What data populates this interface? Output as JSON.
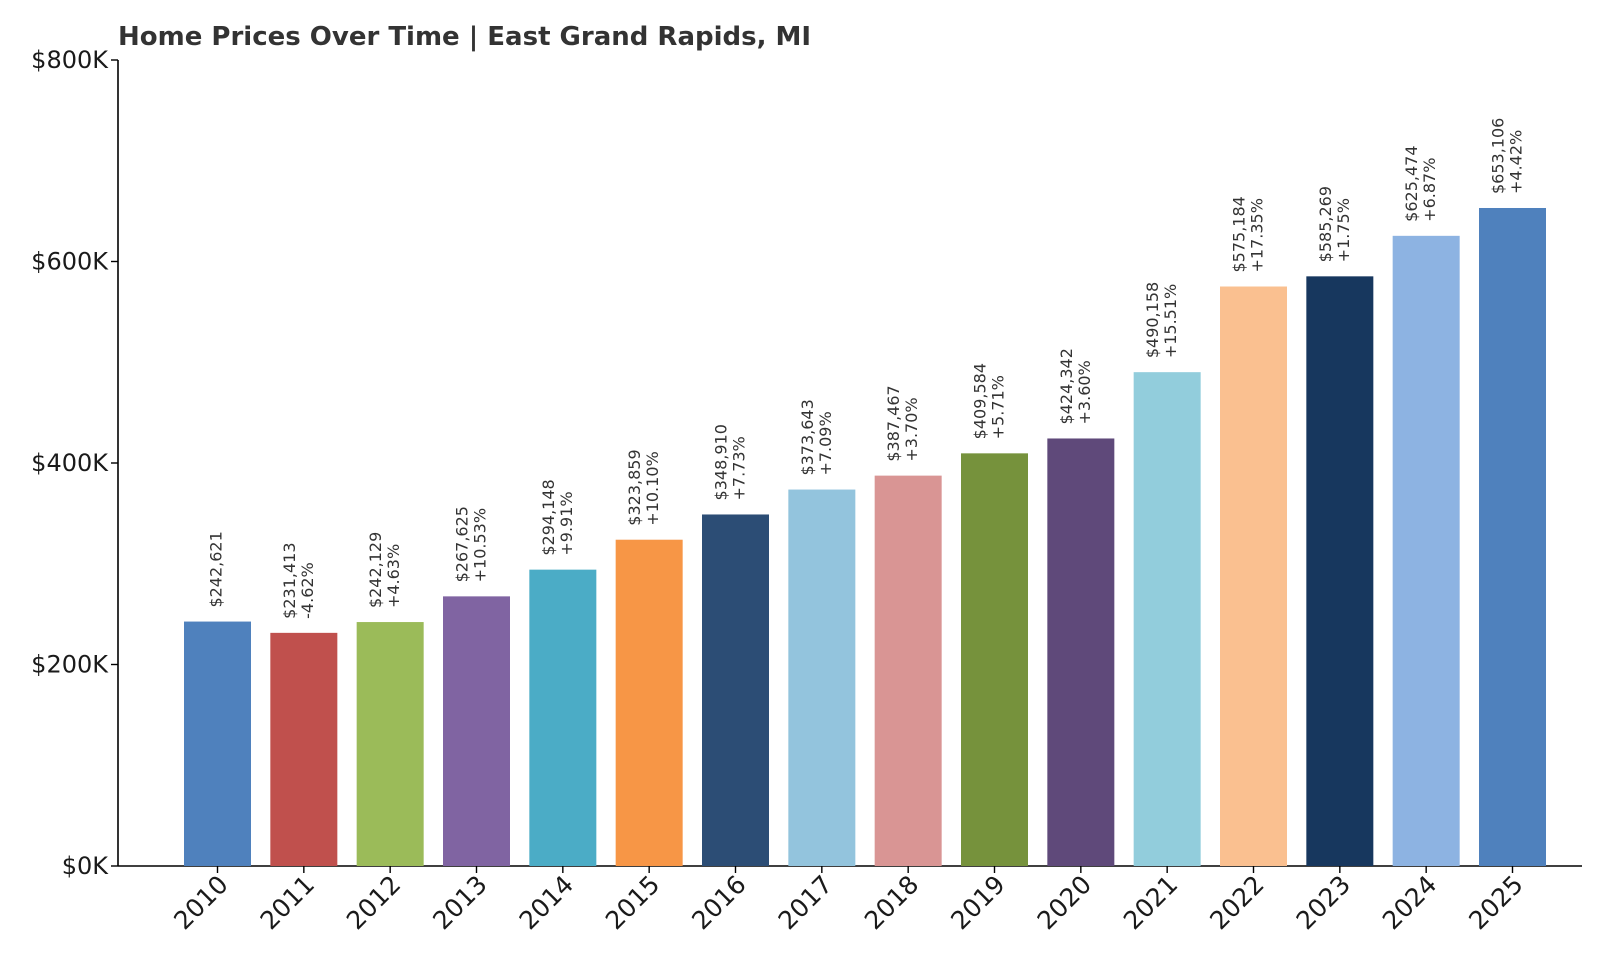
{
  "chart_data": {
    "type": "bar",
    "title": "Home Prices Over Time | East Grand Rapids, MI",
    "xlabel": "",
    "ylabel": "",
    "ylim": [
      0,
      800000
    ],
    "yticks": [
      0,
      200000,
      400000,
      600000,
      800000
    ],
    "ytick_labels": [
      "$0K",
      "$200K",
      "$400K",
      "$600K",
      "$800K"
    ],
    "grid": false,
    "legend": "none",
    "categories": [
      "2010",
      "2011",
      "2012",
      "2013",
      "2014",
      "2015",
      "2016",
      "2017",
      "2018",
      "2019",
      "2020",
      "2021",
      "2022",
      "2023",
      "2024",
      "2025"
    ],
    "values": [
      242621,
      231413,
      242129,
      267625,
      294148,
      323859,
      348910,
      373643,
      387467,
      409584,
      424342,
      490158,
      575184,
      585269,
      625474,
      653106
    ],
    "value_labels": [
      "$242,621",
      "$231,413",
      "$242,129",
      "$267,625",
      "$294,148",
      "$323,859",
      "$348,910",
      "$373,643",
      "$387,467",
      "$409,584",
      "$424,342",
      "$490,158",
      "$575,184",
      "$585,269",
      "$625,474",
      "$653,106"
    ],
    "change_labels": [
      "",
      "-4.62%",
      "+4.63%",
      "+10.53%",
      "+9.91%",
      "+10.10%",
      "+7.73%",
      "+7.09%",
      "+3.70%",
      "+5.71%",
      "+3.60%",
      "+15.51%",
      "+17.35%",
      "+1.75%",
      "+6.87%",
      "+4.42%"
    ],
    "colors": [
      "#4f81bd",
      "#c0504d",
      "#9bbb59",
      "#8064a2",
      "#4bacc6",
      "#f79646",
      "#2c4d75",
      "#93c4dd",
      "#d99594",
      "#76923c",
      "#5f497a",
      "#92cddc",
      "#fac090",
      "#17375e",
      "#8db3e2",
      "#4f81bd"
    ]
  }
}
